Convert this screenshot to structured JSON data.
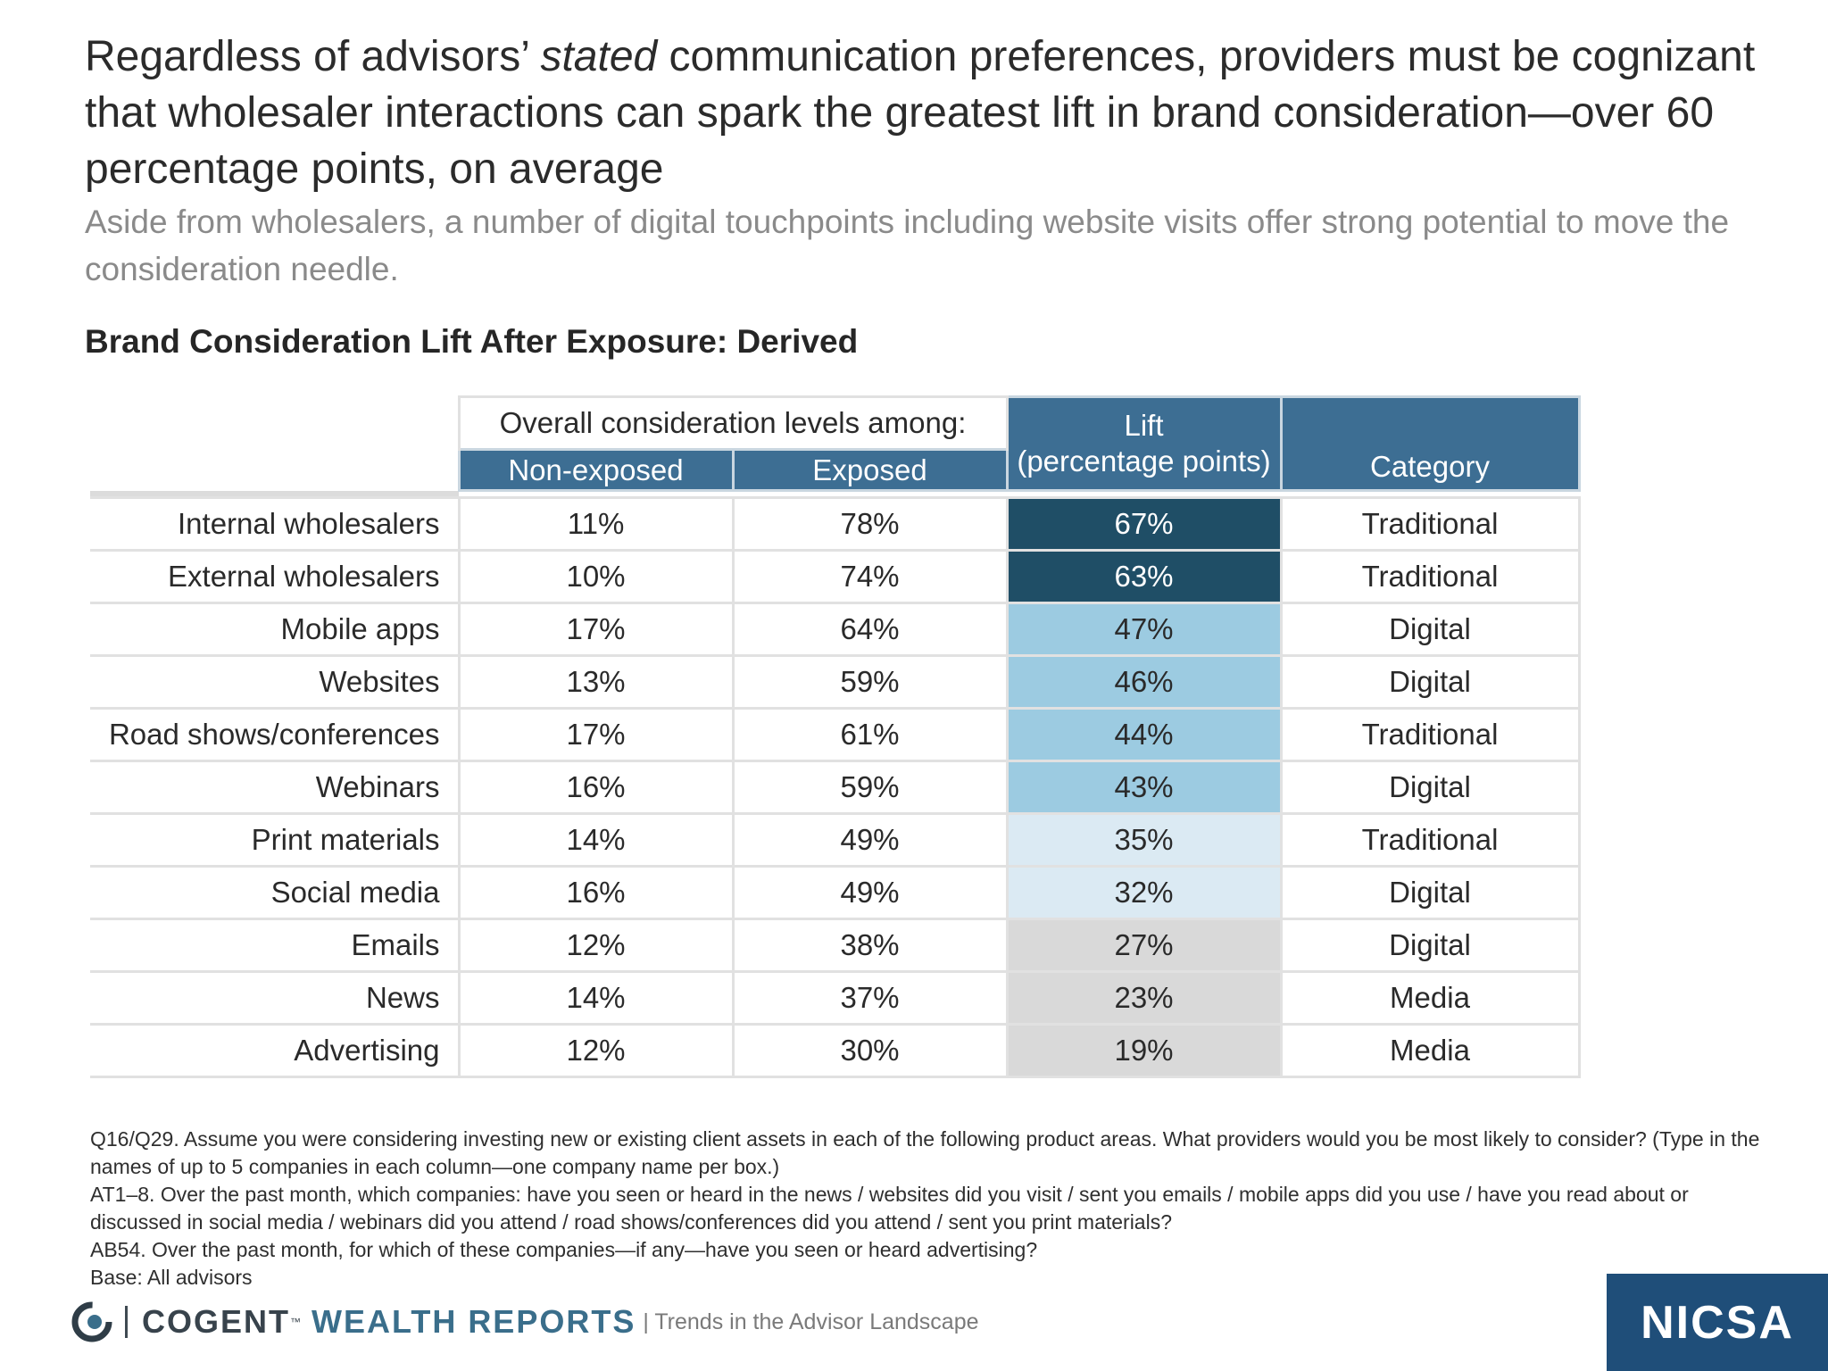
{
  "headline": {
    "part1": "Regardless of advisors’ ",
    "emphasis": "stated",
    "part2": " communication preferences, providers must be cognizant that wholesaler interactions can spark the greatest lift in brand consideration—over 60 percentage points, on average"
  },
  "subhead": "Aside from wholesalers, a number of digital touchpoints including website visits offer strong potential to move the consideration needle.",
  "chart_title": "Brand Consideration Lift After Exposure: Derived",
  "table": {
    "group_header": "Overall consideration levels among:",
    "col_non_exposed": "Non-exposed",
    "col_exposed": "Exposed",
    "col_lift_line1": "Lift",
    "col_lift_line2": "(percentage points)",
    "col_category": "Category",
    "rows": [
      {
        "label": "Internal wholesalers",
        "non_exposed": "11%",
        "exposed": "78%",
        "lift": "67%",
        "category": "Traditional"
      },
      {
        "label": "External wholesalers",
        "non_exposed": "10%",
        "exposed": "74%",
        "lift": "63%",
        "category": "Traditional"
      },
      {
        "label": "Mobile apps",
        "non_exposed": "17%",
        "exposed": "64%",
        "lift": "47%",
        "category": "Digital"
      },
      {
        "label": "Websites",
        "non_exposed": "13%",
        "exposed": "59%",
        "lift": "46%",
        "category": "Digital"
      },
      {
        "label": "Road shows/conferences",
        "non_exposed": "17%",
        "exposed": "61%",
        "lift": "44%",
        "category": "Traditional"
      },
      {
        "label": "Webinars",
        "non_exposed": "16%",
        "exposed": "59%",
        "lift": "43%",
        "category": "Digital"
      },
      {
        "label": "Print materials",
        "non_exposed": "14%",
        "exposed": "49%",
        "lift": "35%",
        "category": "Traditional"
      },
      {
        "label": "Social media",
        "non_exposed": "16%",
        "exposed": "49%",
        "lift": "32%",
        "category": "Digital"
      },
      {
        "label": "Emails",
        "non_exposed": "12%",
        "exposed": "38%",
        "lift": "27%",
        "category": "Digital"
      },
      {
        "label": "News",
        "non_exposed": "14%",
        "exposed": "37%",
        "lift": "23%",
        "category": "Media"
      },
      {
        "label": "Advertising",
        "non_exposed": "12%",
        "exposed": "30%",
        "lift": "19%",
        "category": "Media"
      }
    ],
    "lift_colors": {
      "highest": "#1f4e66",
      "high": "#9ccbe1",
      "medium": "#dbeaf3",
      "low": "#d9d9d9"
    }
  },
  "footnotes": [
    "Q16/Q29. Assume you were considering investing new or existing client assets in each of the following product areas. What providers would you be most likely to consider? (Type in the names of up to 5 companies in each column—one company name per box.)",
    "AT1–8. Over the past month, which companies: have you seen or heard in the news / websites did you visit / sent you emails / mobile apps did you use / have you read about or discussed in social media / webinars did you attend / road shows/conferences did you attend / sent you print materials?",
    "AB54. Over the past month, for which of these companies—if any—have you seen or heard advertising?",
    "Base: All advisors"
  ],
  "footer": {
    "brand_cogent": "COGENT",
    "brand_tm": "™",
    "brand_wealth": "WEALTH REPORTS",
    "tagline": "| Trends in the Advisor Landscape",
    "nicsa": "NICSA",
    "logo_icon": "cogent-swirl-icon"
  },
  "colors": {
    "header_blue": "#3d6e93",
    "nicsa_blue": "#1f4e79"
  }
}
